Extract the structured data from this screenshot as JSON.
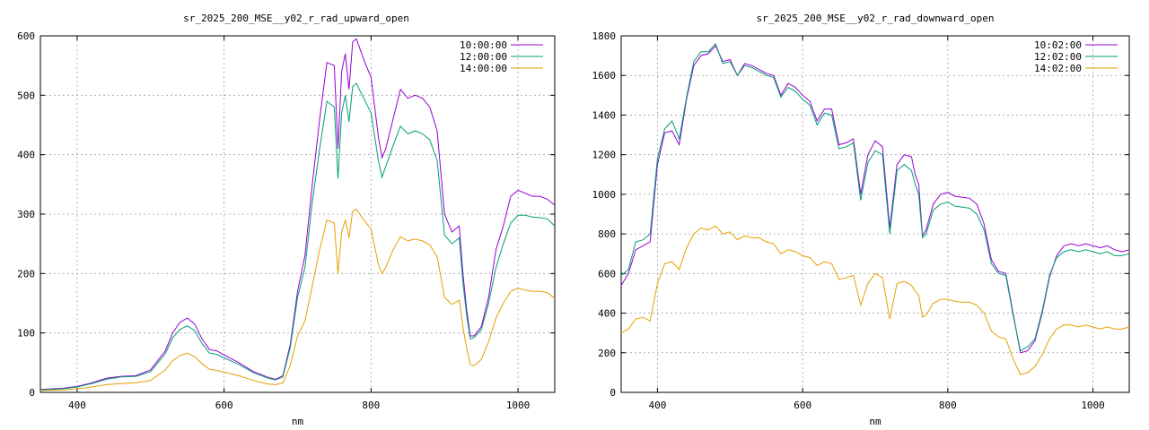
{
  "chart_data": [
    {
      "type": "line",
      "title": "sr_2025_200_MSE__y02_r_rad_upward_open",
      "xlabel": "nm",
      "ylabel": "",
      "xlim": [
        350,
        1050
      ],
      "ylim": [
        0,
        600
      ],
      "xticks": [
        400,
        600,
        800,
        1000
      ],
      "yticks": [
        0,
        100,
        200,
        300,
        400,
        500,
        600
      ],
      "grid": true,
      "legend_position": "top-right",
      "x": [
        350,
        380,
        400,
        420,
        440,
        460,
        480,
        500,
        520,
        530,
        540,
        550,
        560,
        570,
        580,
        590,
        600,
        620,
        640,
        660,
        670,
        680,
        690,
        700,
        710,
        720,
        730,
        740,
        750,
        755,
        760,
        765,
        770,
        775,
        780,
        790,
        800,
        810,
        815,
        820,
        830,
        840,
        850,
        860,
        870,
        880,
        890,
        900,
        910,
        920,
        925,
        930,
        935,
        940,
        950,
        960,
        970,
        980,
        990,
        1000,
        1010,
        1020,
        1030,
        1040,
        1050
      ],
      "series": [
        {
          "name": "10:00:00",
          "color": "#9400d3",
          "values": [
            5,
            7,
            10,
            16,
            24,
            27,
            28,
            38,
            70,
            100,
            118,
            125,
            115,
            90,
            72,
            70,
            63,
            50,
            35,
            25,
            22,
            28,
            80,
            170,
            230,
            350,
            460,
            555,
            550,
            410,
            540,
            570,
            510,
            590,
            595,
            560,
            530,
            430,
            395,
            410,
            460,
            510,
            495,
            500,
            495,
            480,
            440,
            300,
            270,
            280,
            200,
            140,
            95,
            95,
            110,
            160,
            240,
            280,
            330,
            340,
            335,
            330,
            330,
            325,
            315
          ]
        },
        {
          "name": "12:00:00",
          "color": "#009e73",
          "values": [
            4,
            6,
            9,
            15,
            22,
            26,
            27,
            35,
            65,
            92,
            106,
            112,
            104,
            82,
            66,
            64,
            58,
            47,
            33,
            24,
            21,
            26,
            75,
            160,
            210,
            320,
            410,
            490,
            480,
            360,
            470,
            500,
            455,
            515,
            520,
            495,
            470,
            390,
            362,
            380,
            415,
            448,
            435,
            440,
            435,
            425,
            390,
            265,
            250,
            260,
            185,
            130,
            90,
            92,
            105,
            150,
            210,
            250,
            285,
            298,
            298,
            295,
            294,
            292,
            280
          ]
        },
        {
          "name": "14:00:00",
          "color": "#e69f00",
          "values": [
            3,
            4,
            6,
            9,
            13,
            15,
            16,
            20,
            38,
            53,
            62,
            66,
            60,
            48,
            39,
            37,
            34,
            28,
            20,
            14,
            13,
            16,
            45,
            95,
            120,
            180,
            240,
            290,
            285,
            200,
            270,
            290,
            260,
            305,
            308,
            290,
            275,
            215,
            200,
            210,
            240,
            262,
            255,
            258,
            255,
            248,
            228,
            160,
            148,
            155,
            110,
            75,
            47,
            45,
            55,
            85,
            125,
            150,
            170,
            175,
            172,
            170,
            170,
            168,
            158
          ]
        }
      ]
    },
    {
      "type": "line",
      "title": "sr_2025_200_MSE__y02_r_rad_downward_open",
      "xlabel": "nm",
      "ylabel": "",
      "xlim": [
        350,
        1050
      ],
      "ylim": [
        0,
        1800
      ],
      "xticks": [
        400,
        600,
        800,
        1000
      ],
      "yticks": [
        0,
        200,
        400,
        600,
        800,
        1000,
        1200,
        1400,
        1600,
        1800
      ],
      "grid": true,
      "legend_position": "top-right",
      "x": [
        350,
        360,
        370,
        380,
        390,
        400,
        410,
        420,
        430,
        440,
        450,
        460,
        470,
        480,
        490,
        500,
        510,
        520,
        530,
        540,
        550,
        560,
        570,
        580,
        590,
        600,
        610,
        620,
        630,
        640,
        650,
        660,
        670,
        680,
        690,
        700,
        710,
        720,
        730,
        740,
        750,
        755,
        760,
        765,
        770,
        780,
        790,
        800,
        810,
        820,
        830,
        840,
        850,
        860,
        870,
        880,
        890,
        900,
        910,
        920,
        930,
        940,
        950,
        960,
        970,
        980,
        990,
        1000,
        1010,
        1020,
        1030,
        1040,
        1050
      ],
      "series": [
        {
          "name": "10:02:00",
          "color": "#9400d3",
          "values": [
            540,
            600,
            720,
            740,
            760,
            1150,
            1310,
            1320,
            1250,
            1480,
            1650,
            1700,
            1710,
            1750,
            1670,
            1680,
            1600,
            1660,
            1650,
            1630,
            1610,
            1600,
            1500,
            1560,
            1540,
            1500,
            1470,
            1370,
            1430,
            1430,
            1250,
            1260,
            1280,
            1000,
            1200,
            1270,
            1240,
            830,
            1150,
            1200,
            1190,
            1100,
            1050,
            790,
            820,
            950,
            1000,
            1010,
            990,
            985,
            980,
            950,
            850,
            670,
            610,
            600,
            400,
            200,
            210,
            260,
            400,
            580,
            690,
            740,
            750,
            740,
            750,
            740,
            730,
            740,
            720,
            710,
            720
          ]
        },
        {
          "name": "12:02:00",
          "color": "#009e73",
          "values": [
            590,
            620,
            760,
            770,
            800,
            1180,
            1330,
            1370,
            1280,
            1490,
            1670,
            1720,
            1720,
            1760,
            1660,
            1670,
            1600,
            1650,
            1640,
            1620,
            1600,
            1590,
            1490,
            1540,
            1520,
            1480,
            1450,
            1350,
            1410,
            1400,
            1230,
            1240,
            1260,
            970,
            1160,
            1220,
            1200,
            800,
            1120,
            1150,
            1120,
            1050,
            1000,
            780,
            800,
            920,
            950,
            960,
            940,
            935,
            930,
            900,
            820,
            650,
            600,
            590,
            390,
            210,
            230,
            270,
            410,
            590,
            680,
            710,
            720,
            710,
            720,
            710,
            700,
            710,
            690,
            690,
            700
          ]
        },
        {
          "name": "14:02:00",
          "color": "#e69f00",
          "values": [
            300,
            320,
            370,
            380,
            360,
            550,
            650,
            660,
            620,
            730,
            800,
            830,
            820,
            840,
            800,
            810,
            770,
            790,
            780,
            780,
            760,
            750,
            700,
            720,
            710,
            690,
            680,
            640,
            660,
            650,
            570,
            580,
            590,
            440,
            550,
            600,
            580,
            370,
            550,
            560,
            540,
            510,
            490,
            380,
            390,
            450,
            470,
            470,
            460,
            455,
            455,
            440,
            400,
            310,
            280,
            270,
            170,
            90,
            100,
            130,
            190,
            270,
            320,
            340,
            340,
            330,
            340,
            330,
            320,
            330,
            320,
            320,
            330
          ]
        }
      ]
    }
  ]
}
